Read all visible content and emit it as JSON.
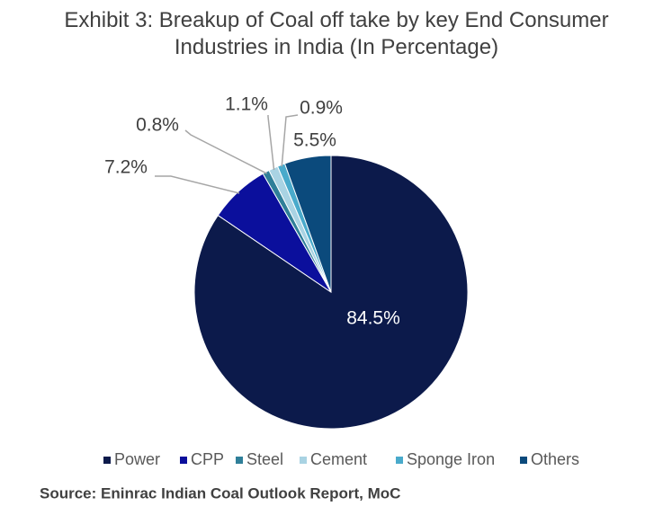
{
  "chart_data": {
    "type": "pie",
    "title": "Exhibit 3: Breakup of Coal off take by key End Consumer Industries in India (In Percentage)",
    "categories": [
      "Power",
      "CPP",
      "Steel",
      "Cement",
      "Sponge Iron",
      "Others"
    ],
    "values": [
      84.5,
      7.2,
      0.8,
      1.1,
      0.9,
      5.5
    ],
    "value_labels": [
      "84.5%",
      "7.2%",
      "0.8%",
      "1.1%",
      "0.9%",
      "5.5%"
    ],
    "colors": [
      "#0c1a4b",
      "#0b0f9c",
      "#2f7f99",
      "#a9d3e3",
      "#49aacb",
      "#0b4a7c"
    ],
    "legend": "bottom",
    "source": "Source: Eninrac Indian Coal Outlook Report, MoC"
  }
}
